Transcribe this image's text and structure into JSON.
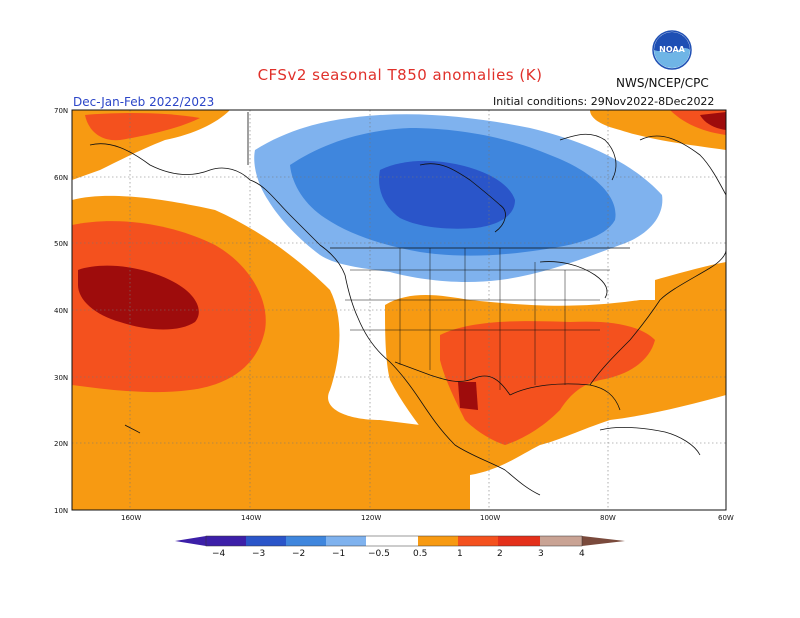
{
  "title": "CFSv2 seasonal T850 anomalies (K)",
  "agency": "NWS/NCEP/CPC",
  "season": "Dec-Jan-Feb 2022/2023",
  "initial_conditions": "Initial conditions: 29Nov2022-8Dec2022",
  "lat_labels": [
    "70N",
    "60N",
    "50N",
    "40N",
    "30N",
    "20N",
    "10N"
  ],
  "lon_labels": [
    "160W",
    "140W",
    "120W",
    "100W",
    "80W",
    "60W"
  ],
  "colorbar": {
    "labels": [
      "−4",
      "−3",
      "−2",
      "−1",
      "−0.5",
      "0.5",
      "1",
      "2",
      "3",
      "4"
    ],
    "colors": [
      "#3c1fa8",
      "#2a55c9",
      "#3f86dd",
      "#7fb2ee",
      "#ffffff",
      "#f79a12",
      "#f4511e",
      "#e4301a",
      "#9e0c0c",
      "#c9a394",
      "#7a4a3c"
    ]
  },
  "logo": {
    "name": "noaa-logo",
    "text": "NOAA",
    "color": "#1e4fb4"
  },
  "map_data": {
    "units": "K",
    "features": [
      {
        "region": "Western North Pacific (around 44N, 175W)",
        "anomaly_min": 3,
        "anomaly_max": 4
      },
      {
        "region": "Northeast Pacific / eastern Pacific subtropics",
        "anomaly_min": 0.5,
        "anomaly_max": 2
      },
      {
        "region": "Western Canada and Hudson Bay region",
        "anomaly_min": -2,
        "anomaly_max": -0.5
      },
      {
        "region": "Southern and southeastern United States",
        "anomaly_min": 1,
        "anomaly_max": 2
      },
      {
        "region": "Northern Mexico (around 27N, 104W)",
        "anomaly_min": 2,
        "anomaly_max": 3
      },
      {
        "region": "Northern Alaska and Bering Sea",
        "anomaly_min": 0.5,
        "anomaly_max": 2
      },
      {
        "region": "Baffin Bay / Greenland",
        "anomaly_min": 0.5,
        "anomaly_max": 2
      }
    ]
  }
}
